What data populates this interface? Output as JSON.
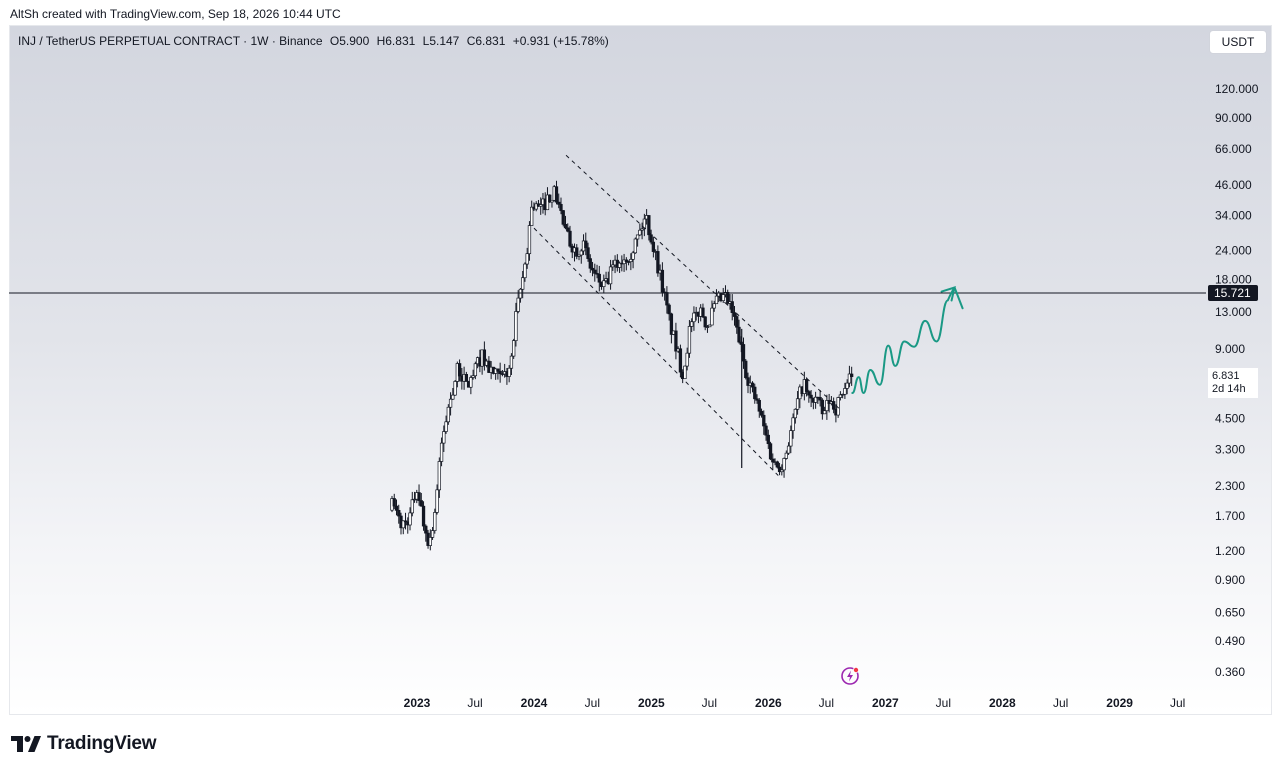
{
  "caption": "AltSh created with TradingView.com, Sep 18, 2026 10:44 UTC",
  "symbol_info": {
    "name": "INJ / TetherUS PERPETUAL CONTRACT · 1W · Binance",
    "open": "O5.900",
    "high": "H6.831",
    "low": "L5.147",
    "close": "C6.831",
    "change": "+0.931 (+15.78%)"
  },
  "currency_button": "USDT",
  "price_level": {
    "label": "15.721",
    "value": 15.721
  },
  "last_price": {
    "value": "6.831",
    "countdown": "2d 14h"
  },
  "brand": "TradingView",
  "chart_data": {
    "type": "candlestick",
    "title": "",
    "y_scale": "log",
    "y_ticks": [
      "120.000",
      "90.000",
      "66.000",
      "46.000",
      "34.000",
      "24.000",
      "18.000",
      "13.000",
      "9.000",
      "6.831",
      "4.500",
      "3.300",
      "2.300",
      "1.700",
      "1.200",
      "0.900",
      "0.650",
      "0.490",
      "0.360"
    ],
    "y_tick_values": [
      120,
      90,
      66,
      46,
      34,
      24,
      18,
      13,
      9,
      4.5,
      3.3,
      2.3,
      1.7,
      1.2,
      0.9,
      0.65,
      0.49,
      0.36
    ],
    "x_ticks": [
      {
        "label": "2023",
        "year": true,
        "date": "2023-01-01"
      },
      {
        "label": "Jul",
        "year": false,
        "date": "2023-07-01"
      },
      {
        "label": "2024",
        "year": true,
        "date": "2024-01-01"
      },
      {
        "label": "Jul",
        "year": false,
        "date": "2024-07-01"
      },
      {
        "label": "2025",
        "year": true,
        "date": "2025-01-01"
      },
      {
        "label": "Jul",
        "year": false,
        "date": "2025-07-01"
      },
      {
        "label": "2026",
        "year": true,
        "date": "2026-01-01"
      },
      {
        "label": "Jul",
        "year": false,
        "date": "2026-07-01"
      },
      {
        "label": "2027",
        "year": true,
        "date": "2027-01-01"
      },
      {
        "label": "Jul",
        "year": false,
        "date": "2027-07-01"
      },
      {
        "label": "2028",
        "year": true,
        "date": "2028-01-01"
      },
      {
        "label": "Jul",
        "year": false,
        "date": "2028-07-01"
      },
      {
        "label": "2029",
        "year": true,
        "date": "2029-01-01"
      },
      {
        "label": "Jul",
        "year": false,
        "date": "2029-07-01"
      }
    ],
    "price_path": [
      [
        "2022-10-15",
        1.9
      ],
      [
        "2022-11-15",
        1.55
      ],
      [
        "2022-12-10",
        1.7
      ],
      [
        "2023-01-01",
        2.3
      ],
      [
        "2023-01-25",
        1.5
      ],
      [
        "2023-02-10",
        1.3
      ],
      [
        "2023-02-28",
        1.9
      ],
      [
        "2023-03-20",
        3.6
      ],
      [
        "2023-04-15",
        5.5
      ],
      [
        "2023-05-10",
        7.5
      ],
      [
        "2023-06-05",
        6.2
      ],
      [
        "2023-06-25",
        6.9
      ],
      [
        "2023-07-20",
        8.5
      ],
      [
        "2023-08-20",
        7.2
      ],
      [
        "2023-09-20",
        6.6
      ],
      [
        "2023-10-20",
        7.5
      ],
      [
        "2023-11-08",
        13.0
      ],
      [
        "2023-11-25",
        17.5
      ],
      [
        "2023-12-10",
        24.0
      ],
      [
        "2023-12-25",
        38.0
      ],
      [
        "2024-01-20",
        36.0
      ],
      [
        "2024-02-10",
        40.0
      ],
      [
        "2024-03-01",
        43.0
      ],
      [
        "2024-03-15",
        40.0
      ],
      [
        "2024-04-10",
        28.0
      ],
      [
        "2024-05-10",
        24.0
      ],
      [
        "2024-06-01",
        26.0
      ],
      [
        "2024-06-20",
        21.0
      ],
      [
        "2024-07-15",
        18.0
      ],
      [
        "2024-08-10",
        16.5
      ],
      [
        "2024-09-01",
        20.0
      ],
      [
        "2024-10-01",
        22.0
      ],
      [
        "2024-11-01",
        24.0
      ],
      [
        "2024-12-01",
        30.0
      ],
      [
        "2024-12-15",
        34.0
      ],
      [
        "2025-01-10",
        24.0
      ],
      [
        "2025-02-01",
        18.0
      ],
      [
        "2025-02-20",
        13.0
      ],
      [
        "2025-03-20",
        9.0
      ],
      [
        "2025-04-10",
        7.0
      ],
      [
        "2025-05-01",
        11.0
      ],
      [
        "2025-06-01",
        13.5
      ],
      [
        "2025-06-25",
        11.5
      ],
      [
        "2025-07-25",
        14.5
      ],
      [
        "2025-08-20",
        15.0
      ],
      [
        "2025-09-10",
        13.0
      ],
      [
        "2025-10-01",
        10.0
      ],
      [
        "2025-10-20",
        7.5
      ],
      [
        "2025-11-10",
        6.0
      ],
      [
        "2025-12-01",
        5.0
      ],
      [
        "2025-12-20",
        4.0
      ],
      [
        "2026-01-10",
        3.1
      ],
      [
        "2026-01-25",
        2.8
      ],
      [
        "2026-02-15",
        2.9
      ],
      [
        "2026-03-10",
        3.8
      ],
      [
        "2026-04-01",
        5.2
      ],
      [
        "2026-04-20",
        6.5
      ],
      [
        "2026-05-10",
        5.3
      ],
      [
        "2026-06-01",
        5.6
      ],
      [
        "2026-06-20",
        4.6
      ],
      [
        "2026-07-10",
        5.4
      ],
      [
        "2026-08-01",
        5.0
      ],
      [
        "2026-08-20",
        5.9
      ],
      [
        "2026-09-18",
        6.831
      ]
    ],
    "candle_count": 205,
    "channel_upper": [
      [
        "2024-04-10",
        62.0
      ],
      [
        "2026-08-15",
        4.9
      ]
    ],
    "channel_lower": [
      [
        "2024-01-01",
        30.0
      ],
      [
        "2026-02-01",
        2.55
      ]
    ],
    "crash_wick": {
      "date": "2025-10-10",
      "low": 2.75
    },
    "projection": [
      [
        "2026-09-20",
        5.8
      ],
      [
        "2026-10-10",
        6.8
      ],
      [
        "2026-10-25",
        5.8
      ],
      [
        "2026-11-15",
        7.3
      ],
      [
        "2026-12-15",
        6.3
      ],
      [
        "2027-01-10",
        9.3
      ],
      [
        "2027-02-01",
        7.6
      ],
      [
        "2027-03-01",
        9.7
      ],
      [
        "2027-04-01",
        9.2
      ],
      [
        "2027-05-05",
        11.9
      ],
      [
        "2027-06-10",
        9.7
      ],
      [
        "2027-07-15",
        14.6
      ]
    ],
    "projection_arrow_tip": [
      "2027-08-05",
      16.6
    ],
    "projection_arrow_end": [
      "2027-08-30",
      13.5
    ],
    "colors": {
      "candles": "#131722",
      "projection": "#1a9985",
      "level_line": "#131722",
      "channel": "#131722"
    }
  }
}
